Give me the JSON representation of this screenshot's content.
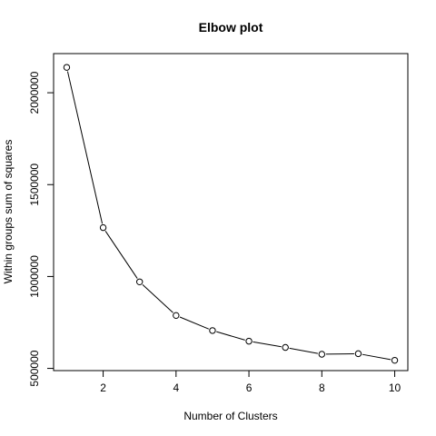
{
  "chart_data": {
    "type": "line",
    "title": "Elbow plot",
    "xlabel": "Number of Clusters",
    "ylabel": "Within groups sum of squares",
    "x": [
      1,
      2,
      3,
      4,
      5,
      6,
      7,
      8,
      9,
      10
    ],
    "series": [
      {
        "values": [
          2138000,
          1266000,
          971000,
          788000,
          706000,
          648000,
          614000,
          577000,
          580000,
          544000
        ]
      }
    ],
    "xticks": [
      2,
      4,
      6,
      8,
      10
    ],
    "yticks": [
      500000,
      1000000,
      1500000,
      2000000
    ],
    "xtick_labels": [
      "2",
      "4",
      "6",
      "8",
      "10"
    ],
    "ytick_labels": [
      "500000",
      "1000000",
      "1500000",
      "2000000"
    ],
    "xlim": [
      0.64,
      10.36
    ],
    "ylim": [
      488000,
      2213000
    ],
    "markers": "open-circle",
    "grid": false
  }
}
